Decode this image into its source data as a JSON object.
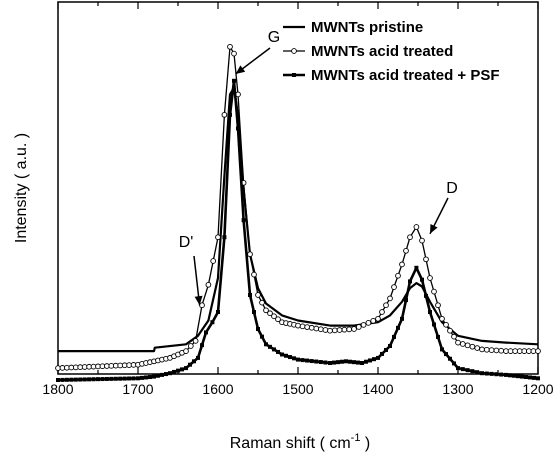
{
  "chart_data": {
    "type": "line",
    "title": "",
    "xlabel": "Raman shift ( cm",
    "xlabel_sup": "-1",
    "xlabel_suffix": " )",
    "ylabel": "Intensity ( a.u. )",
    "xlim": [
      1800,
      1200
    ],
    "x_reversed": true,
    "ylim": [
      0,
      100
    ],
    "y_ticks_labeled": false,
    "x_ticks": [
      1800,
      1700,
      1600,
      1500,
      1400,
      1300,
      1200
    ],
    "x_tick_labels": [
      "1800",
      "1700",
      "1600",
      "1500",
      "1400",
      "1300",
      "1200"
    ],
    "grid": false,
    "legend_position": "top-right",
    "series": [
      {
        "name": "MWNTs pristine",
        "marker": "none",
        "color": "#000000",
        "x": [
          1800,
          1700,
          1680,
          1679,
          1640,
          1625,
          1612,
          1600,
          1592,
          1585,
          1580,
          1575,
          1568,
          1560,
          1550,
          1540,
          1520,
          1500,
          1460,
          1430,
          1400,
          1385,
          1370,
          1360,
          1352,
          1345,
          1335,
          1320,
          1300,
          1270,
          1240,
          1200
        ],
        "y": [
          8.5,
          8.5,
          8.5,
          9.5,
          10.5,
          13,
          17.5,
          30,
          60,
          84,
          86,
          78,
          56,
          37,
          27,
          22.5,
          19,
          17.5,
          16,
          16,
          17,
          19,
          23,
          27,
          28.5,
          27.5,
          23,
          17,
          13,
          11.5,
          11,
          10.5
        ]
      },
      {
        "name": "MWNTs acid treated",
        "marker": "open-circle",
        "color": "#000000",
        "x": [
          1800,
          1700,
          1680,
          1660,
          1640,
          1628,
          1620,
          1612,
          1600,
          1592,
          1585,
          1580,
          1575,
          1568,
          1560,
          1550,
          1540,
          1520,
          1500,
          1460,
          1430,
          1400,
          1385,
          1370,
          1360,
          1352,
          1345,
          1335,
          1320,
          1300,
          1270,
          1240,
          1200
        ],
        "y": [
          3.5,
          4.5,
          5.5,
          6.5,
          8.5,
          11.5,
          22,
          28,
          42,
          78,
          98,
          96,
          84,
          58,
          37,
          25,
          20.5,
          17,
          16,
          14.5,
          15,
          18,
          24,
          34,
          42,
          45,
          41,
          30,
          18,
          11,
          9,
          8.5,
          8.5
        ]
      },
      {
        "name": "MWNTs acid treated + PSF",
        "marker": "filled-square",
        "color": "#000000",
        "x": [
          1800,
          1700,
          1680,
          1660,
          1640,
          1625,
          1615,
          1607,
          1600,
          1592,
          1585,
          1580,
          1575,
          1568,
          1560,
          1550,
          1540,
          1520,
          1500,
          1460,
          1440,
          1420,
          1400,
          1385,
          1370,
          1360,
          1352,
          1345,
          1335,
          1320,
          1300,
          1270,
          1240,
          1220,
          1200
        ],
        "y": [
          0,
          0.5,
          1,
          2,
          3.5,
          6.5,
          14,
          17,
          20,
          42,
          78,
          88,
          74,
          47,
          25,
          15,
          10.5,
          7.5,
          6,
          5,
          5.5,
          5,
          6.5,
          10,
          18,
          29,
          33,
          29.5,
          20,
          9,
          3.5,
          2,
          1.5,
          1,
          0.5
        ]
      }
    ],
    "annotations": [
      {
        "text": "G",
        "arrow_to": [
          1578,
          90
        ]
      },
      {
        "text": "D",
        "arrow_to": [
          1335,
          43
        ]
      },
      {
        "text": "D'",
        "arrow_to": [
          1623,
          22
        ]
      }
    ]
  }
}
